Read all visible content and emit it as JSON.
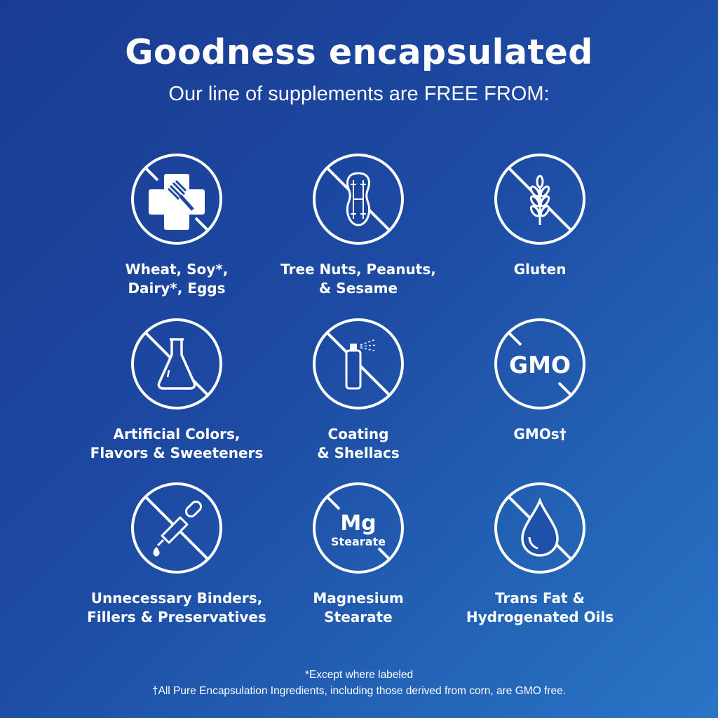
{
  "header": {
    "title": "Goodness encapsulated",
    "subtitle": "Our line of supplements are FREE FROM:"
  },
  "items": [
    {
      "icon": "no-allergen-cross-fork-icon",
      "line1": "Wheat, Soy*,",
      "line2": "Dairy*, Eggs"
    },
    {
      "icon": "no-peanut-icon",
      "line1": "Tree Nuts, Peanuts,",
      "line2": "& Sesame"
    },
    {
      "icon": "no-wheat-icon",
      "line1": "Gluten",
      "line2": ""
    },
    {
      "icon": "no-flask-icon",
      "line1": "Artificial Colors,",
      "line2": "Flavors & Sweeteners"
    },
    {
      "icon": "no-spray-can-icon",
      "line1": "Coating",
      "line2": "& Shellacs"
    },
    {
      "icon": "no-gmo-icon",
      "line1": "GMOs†",
      "line2": "",
      "icon_text": "GMO"
    },
    {
      "icon": "no-dropper-icon",
      "line1": "Unnecessary Binders,",
      "line2": "Fillers & Preservatives"
    },
    {
      "icon": "no-mg-stearate-icon",
      "line1": "Magnesium",
      "line2": "Stearate",
      "icon_text": "Mg",
      "icon_subtext": "Stearate"
    },
    {
      "icon": "no-oil-drop-icon",
      "line1": "Trans Fat &",
      "line2": "Hydrogenated Oils"
    }
  ],
  "footer": {
    "note1": "*Except where labeled",
    "note2": "†All Pure Encapsulation Ingredients, including those derived from corn, are GMO free."
  },
  "colors": {
    "background_start": "#1a3b92",
    "background_end": "#2a74c6",
    "foreground": "#ffffff"
  }
}
